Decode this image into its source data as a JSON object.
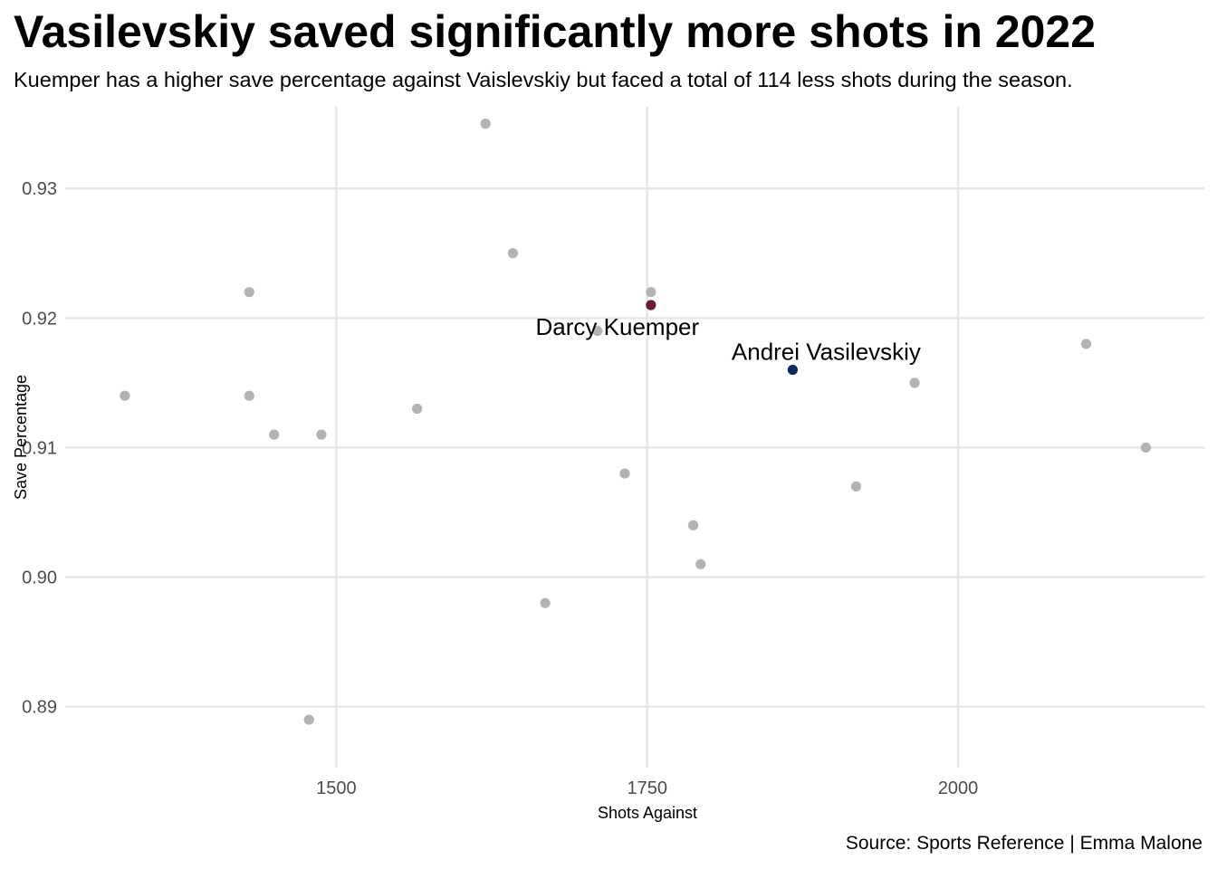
{
  "chart": {
    "title": "Vasilevskiy saved significantly more shots in 2022",
    "subtitle": "Kuemper has a higher save percentage against Vaislevskiy but faced a total of 114 less shots during the season.",
    "caption": "Source: Sports Reference | Emma Malone"
  },
  "chart_data": {
    "type": "scatter",
    "title": "Vasilevskiy saved significantly more shots in 2022",
    "subtitle": "Kuemper has a higher save percentage against Vaislevskiy but faced a total of 114 less shots during the season.",
    "xlabel": "Shots Against",
    "ylabel": "Save Percentage",
    "xlim": [
      1282,
      2198
    ],
    "ylim": [
      0.8853,
      0.9363
    ],
    "x_ticks": [
      1500,
      1750,
      2000
    ],
    "y_ticks": [
      0.89,
      0.9,
      0.91,
      0.92,
      0.93
    ],
    "y_tick_labels": [
      "0.89",
      "0.90",
      "0.91",
      "0.92",
      "0.93"
    ],
    "grid": true,
    "colors": {
      "default": "#b3b3b3",
      "kuemper": "#6b1a37",
      "vasilevskiy": "#0b2a5e",
      "grid": "#e6e6e6"
    },
    "points": [
      {
        "x": 1330,
        "y": 0.914
      },
      {
        "x": 1430,
        "y": 0.922
      },
      {
        "x": 1430,
        "y": 0.914
      },
      {
        "x": 1450,
        "y": 0.911
      },
      {
        "x": 1478,
        "y": 0.889
      },
      {
        "x": 1488,
        "y": 0.911
      },
      {
        "x": 1565,
        "y": 0.913
      },
      {
        "x": 1620,
        "y": 0.935
      },
      {
        "x": 1642,
        "y": 0.925
      },
      {
        "x": 1668,
        "y": 0.898
      },
      {
        "x": 1710,
        "y": 0.919
      },
      {
        "x": 1732,
        "y": 0.908
      },
      {
        "x": 1753,
        "y": 0.922
      },
      {
        "x": 1787,
        "y": 0.904
      },
      {
        "x": 1793,
        "y": 0.901
      },
      {
        "x": 1918,
        "y": 0.907
      },
      {
        "x": 1965,
        "y": 0.915
      },
      {
        "x": 2103,
        "y": 0.918
      },
      {
        "x": 2151,
        "y": 0.91
      }
    ],
    "highlighted": [
      {
        "name": "Darcy Kuemper",
        "x": 1753,
        "y": 0.921,
        "color": "#6b1a37"
      },
      {
        "name": "Andrei Vasilevskiy",
        "x": 1867,
        "y": 0.916,
        "color": "#0b2a5e"
      }
    ],
    "caption": "Source: Sports Reference | Emma Malone"
  }
}
